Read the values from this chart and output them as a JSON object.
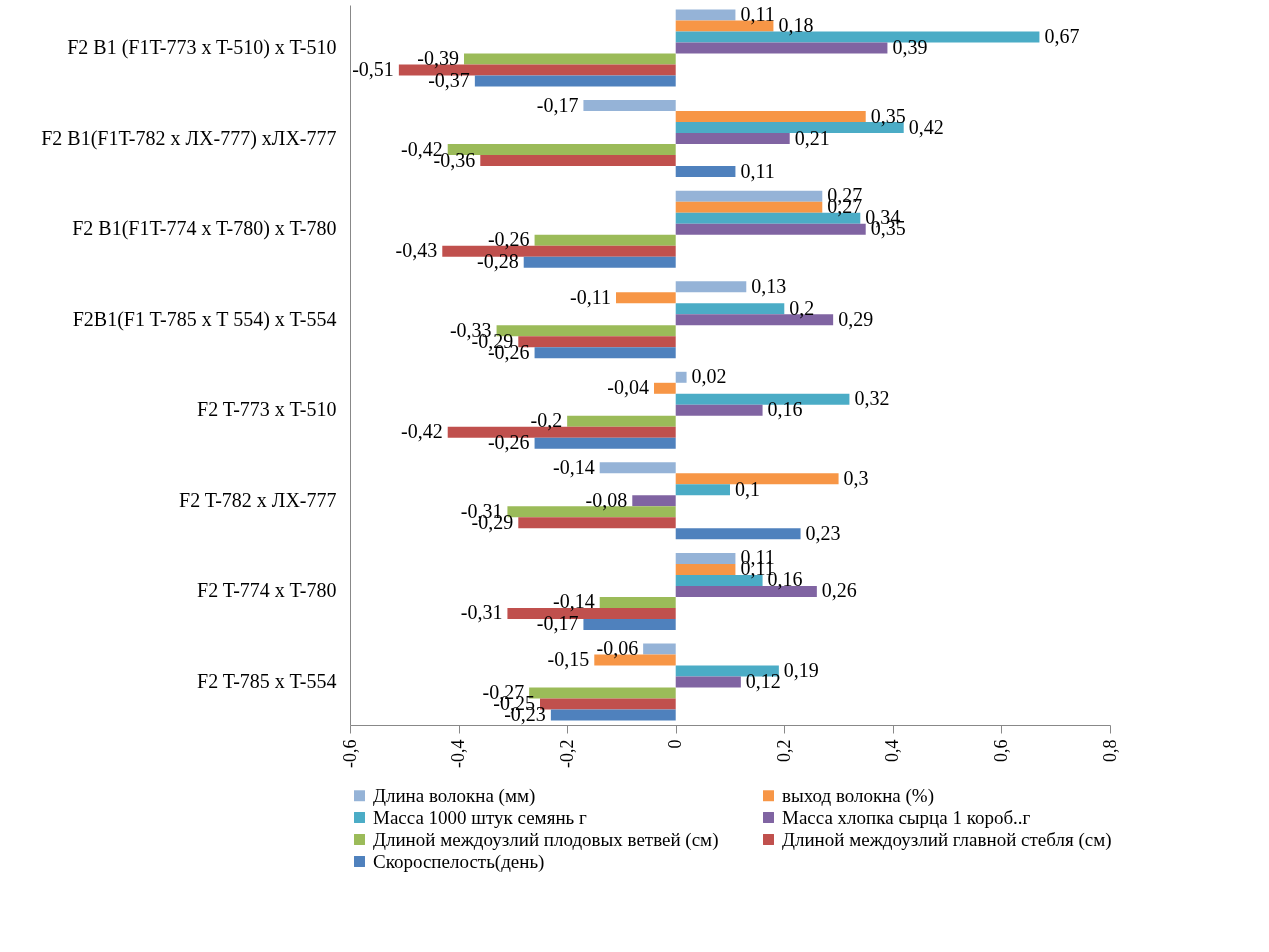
{
  "chart_data": {
    "type": "bar",
    "orientation": "horizontal",
    "categories": [
      "F2 B1 (F1T-773 x T-510) x T-510",
      "F2 B1(F1T-782 x ЛХ-777) xЛХ-777",
      "F2 B1(F1T-774 x T-780) x T-780",
      "F2B1(F1 T-785 x T 554) x T-554",
      "F2 T-773 x T-510",
      "F2 T-782 x ЛХ-777",
      "F2 T-774 x T-780",
      "F2 T-785 x T-554"
    ],
    "series": [
      {
        "name": "Длина волокна (мм)",
        "color": "#95b3d7",
        "values": [
          0.11,
          -0.17,
          0.27,
          0.13,
          0.02,
          -0.14,
          0.11,
          -0.06
        ]
      },
      {
        "name": "выход волокна (%)",
        "color": "#f79646",
        "values": [
          0.18,
          0.35,
          0.27,
          -0.11,
          -0.04,
          0.3,
          0.11,
          -0.15
        ]
      },
      {
        "name": "Масса 1000 штук семянь г",
        "color": "#4bacc6",
        "values": [
          0.67,
          0.42,
          0.34,
          0.2,
          0.32,
          0.1,
          0.16,
          0.19
        ]
      },
      {
        "name": "Масса хлопка сырца 1 короб..г",
        "color": "#8064a2",
        "values": [
          0.39,
          0.21,
          0.35,
          0.29,
          0.16,
          -0.08,
          0.26,
          0.12
        ]
      },
      {
        "name": "Длиной междоузлий плодовых ветвей (см)",
        "color": "#9bbb59",
        "values": [
          -0.39,
          -0.42,
          -0.26,
          -0.33,
          -0.2,
          -0.31,
          -0.14,
          -0.27
        ]
      },
      {
        "name": "Длиной междоузлий главной стебля (см)",
        "color": "#c0504d",
        "values": [
          -0.51,
          -0.36,
          -0.43,
          -0.29,
          -0.42,
          -0.29,
          -0.31,
          -0.25
        ]
      },
      {
        "name": "Скороспелость(день)",
        "color": "#4f81bd",
        "values": [
          -0.37,
          0.11,
          -0.28,
          -0.26,
          -0.26,
          0.23,
          -0.17,
          -0.23
        ]
      }
    ],
    "xlim": [
      -0.6,
      0.8
    ],
    "xticks": [
      {
        "value": -0.6,
        "label": "-0,6"
      },
      {
        "value": -0.4,
        "label": "-0,4"
      },
      {
        "value": -0.2,
        "label": "-0,2"
      },
      {
        "value": 0,
        "label": "0"
      },
      {
        "value": 0.2,
        "label": "0,2"
      },
      {
        "value": 0.4,
        "label": "0,4"
      },
      {
        "value": 0.6,
        "label": "0,6"
      },
      {
        "value": 0.8,
        "label": "0,8"
      }
    ],
    "value_labels": [
      [
        "0,11",
        "-0,17",
        "0,27",
        "0,13",
        "0,02",
        "-0,14",
        "0,11",
        "-0,06"
      ],
      [
        "0,18",
        "0,35",
        "0,27",
        "-0,11",
        "-0,04",
        "0,3",
        "0,11",
        "-0,15"
      ],
      [
        "0,67",
        "0,42",
        "0,34",
        "0,2",
        "0,32",
        "0,1",
        "0,16",
        "0,19"
      ],
      [
        "0,39",
        "0,21",
        "0,35",
        "0,29",
        "0,16",
        "-0,08",
        "0,26",
        "0,12"
      ],
      [
        "-0,39",
        "-0,42",
        "-0,26",
        "-0,33",
        "-0,2",
        "-0,31",
        "-0,14",
        "-0,27"
      ],
      [
        "-0,51",
        "-0,36",
        "-0,43",
        "-0,29",
        "-0,42",
        "-0,29",
        "-0,31",
        "-0,25"
      ],
      [
        "-0,37",
        "0,11",
        "-0,28",
        "-0,26",
        "-0,26",
        "0,23",
        "-0,17",
        "-0,23"
      ]
    ],
    "legend": "bottom",
    "grid": false
  }
}
